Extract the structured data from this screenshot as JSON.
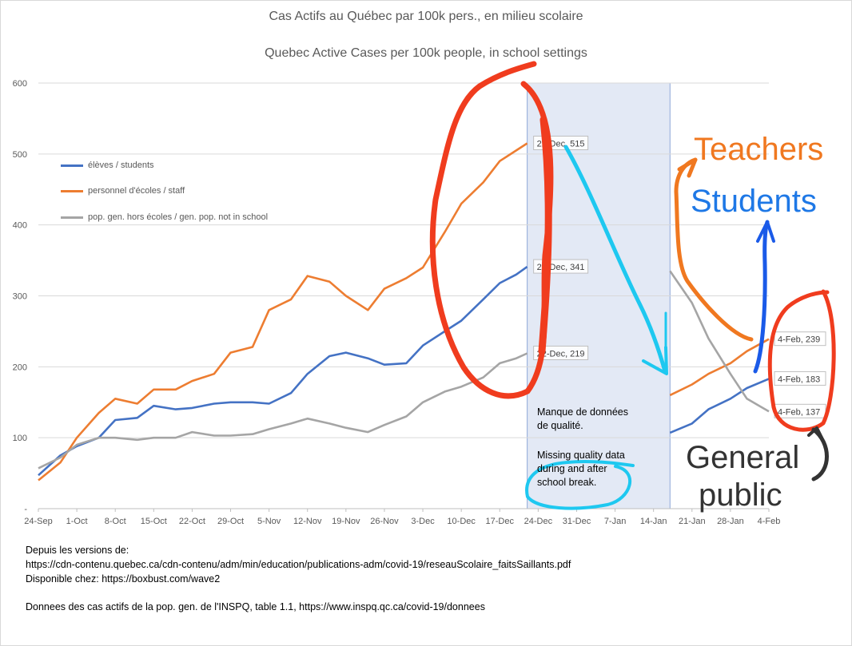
{
  "titles": {
    "fr": "Cas Actifs au Québec par 100k pers., en milieu scolaire",
    "en": "Quebec Active Cases per 100k people, in school settings"
  },
  "legend": [
    {
      "label": "élèves / students",
      "color": "#4472c4"
    },
    {
      "label": "personnel d'écoles / staff",
      "color": "#ed7d31"
    },
    {
      "label": "pop. gen. hors écoles / gen. pop. not in school",
      "color": "#a5a5a5"
    }
  ],
  "missing_note": {
    "fr_line1": "Manque de données",
    "fr_line2": "de qualité.",
    "en_line1": "Missing quality data",
    "en_line2": "during and after",
    "en_line3": "school break."
  },
  "handwritten": {
    "teachers": "Teachers",
    "students": "Students",
    "general_line1": "General",
    "general_line2": "public"
  },
  "footer": {
    "line1": "Depuis les versions de:",
    "line2": "https://cdn-contenu.quebec.ca/cdn-contenu/adm/min/education/publications-adm/covid-19/reseauScolaire_faitsSaillants.pdf",
    "line3": "Disponible chez: https://boxbust.com/wave2",
    "line4": "Donnees des cas actifs de la pop. gen. de l'INSPQ, table 1.1, https://www.inspq.qc.ca/covid-19/donnees"
  },
  "colors": {
    "students": "#4472c4",
    "staff": "#ed7d31",
    "general": "#a5a5a5",
    "shade": "#e3e9f5",
    "annot_red": "#f03c1e",
    "annot_cyan": "#1ec8f0",
    "annot_orange": "#f07820",
    "annot_blue": "#1a5ae8",
    "annot_black": "#333333",
    "hand_teachers": "#f07820",
    "hand_students": "#1e78e6",
    "hand_general": "#333333"
  },
  "chart_data": {
    "type": "line",
    "title": "Cas Actifs au Québec par 100k pers., en milieu scolaire / Quebec Active Cases per 100k people, in school settings",
    "ylim": [
      0,
      600
    ],
    "y_ticks": [
      "-",
      "100",
      "200",
      "300",
      "400",
      "500",
      "600"
    ],
    "x_ticks": [
      "24-Sep",
      "1-Oct",
      "8-Oct",
      "15-Oct",
      "22-Oct",
      "29-Oct",
      "5-Nov",
      "12-Nov",
      "19-Nov",
      "26-Nov",
      "3-Dec",
      "10-Dec",
      "17-Dec",
      "24-Dec",
      "31-Dec",
      "7-Jan",
      "14-Jan",
      "21-Jan",
      "28-Jan",
      "4-Feb"
    ],
    "legend_position": "top-left",
    "grid": "horizontal",
    "missing_period": [
      "22-Dec",
      "17-Jan"
    ],
    "series": [
      {
        "name": "élèves / students",
        "segments": [
          {
            "x": [
              "24-Sep",
              "28-Sep",
              "1-Oct",
              "5-Oct",
              "8-Oct",
              "12-Oct",
              "15-Oct",
              "19-Oct",
              "22-Oct",
              "26-Oct",
              "29-Oct",
              "2-Nov",
              "5-Nov",
              "9-Nov",
              "12-Nov",
              "16-Nov",
              "19-Nov",
              "23-Nov",
              "26-Nov",
              "30-Nov",
              "3-Dec",
              "7-Dec",
              "10-Dec",
              "14-Dec",
              "17-Dec",
              "20-Dec",
              "22-Dec"
            ],
            "y": [
              47,
              75,
              88,
              100,
              125,
              128,
              145,
              140,
              142,
              148,
              150,
              150,
              148,
              163,
              190,
              215,
              220,
              212,
              203,
              205,
              230,
              250,
              265,
              295,
              318,
              330,
              341
            ]
          },
          {
            "x": [
              "17-Jan",
              "21-Jan",
              "24-Jan",
              "28-Jan",
              "31-Jan",
              "4-Feb"
            ],
            "y": [
              107,
              120,
              140,
              155,
              170,
              183
            ]
          }
        ]
      },
      {
        "name": "personnel d'écoles / staff",
        "segments": [
          {
            "x": [
              "24-Sep",
              "28-Sep",
              "1-Oct",
              "5-Oct",
              "8-Oct",
              "12-Oct",
              "15-Oct",
              "19-Oct",
              "22-Oct",
              "26-Oct",
              "29-Oct",
              "2-Nov",
              "5-Nov",
              "9-Nov",
              "12-Nov",
              "16-Nov",
              "19-Nov",
              "23-Nov",
              "26-Nov",
              "30-Nov",
              "3-Dec",
              "7-Dec",
              "10-Dec",
              "14-Dec",
              "17-Dec",
              "20-Dec",
              "22-Dec"
            ],
            "y": [
              40,
              65,
              100,
              135,
              155,
              148,
              168,
              168,
              180,
              190,
              220,
              228,
              280,
              295,
              328,
              320,
              300,
              280,
              310,
              325,
              340,
              390,
              430,
              460,
              490,
              505,
              515
            ]
          },
          {
            "x": [
              "17-Jan",
              "21-Jan",
              "24-Jan",
              "28-Jan",
              "31-Jan",
              "4-Feb"
            ],
            "y": [
              160,
              175,
              190,
              205,
              222,
              239
            ]
          }
        ]
      },
      {
        "name": "pop. gen. hors écoles / gen. pop. not in school",
        "segments": [
          {
            "x": [
              "24-Sep",
              "28-Sep",
              "1-Oct",
              "5-Oct",
              "8-Oct",
              "12-Oct",
              "15-Oct",
              "19-Oct",
              "22-Oct",
              "26-Oct",
              "29-Oct",
              "2-Nov",
              "5-Nov",
              "9-Nov",
              "12-Nov",
              "16-Nov",
              "19-Nov",
              "23-Nov",
              "26-Nov",
              "30-Nov",
              "3-Dec",
              "7-Dec",
              "10-Dec",
              "14-Dec",
              "17-Dec",
              "20-Dec",
              "22-Dec"
            ],
            "y": [
              57,
              72,
              90,
              100,
              100,
              97,
              100,
              100,
              108,
              103,
              103,
              105,
              112,
              120,
              127,
              120,
              114,
              108,
              118,
              130,
              150,
              165,
              172,
              185,
              205,
              212,
              219
            ]
          },
          {
            "x": [
              "17-Jan",
              "21-Jan",
              "24-Jan",
              "28-Jan",
              "31-Jan",
              "4-Feb"
            ],
            "y": [
              335,
              290,
              240,
              190,
              155,
              137
            ]
          }
        ]
      }
    ],
    "data_labels": [
      {
        "text": "22-Dec, 515",
        "x": "22-Dec",
        "y": 515
      },
      {
        "text": "22-Dec, 341",
        "x": "22-Dec",
        "y": 341
      },
      {
        "text": "22-Dec, 219",
        "x": "22-Dec",
        "y": 219
      },
      {
        "text": "4-Feb, 239",
        "x": "4-Feb",
        "y": 239
      },
      {
        "text": "4-Feb, 183",
        "x": "4-Feb",
        "y": 183
      },
      {
        "text": "4-Feb, 137",
        "x": "4-Feb",
        "y": 137
      }
    ]
  }
}
